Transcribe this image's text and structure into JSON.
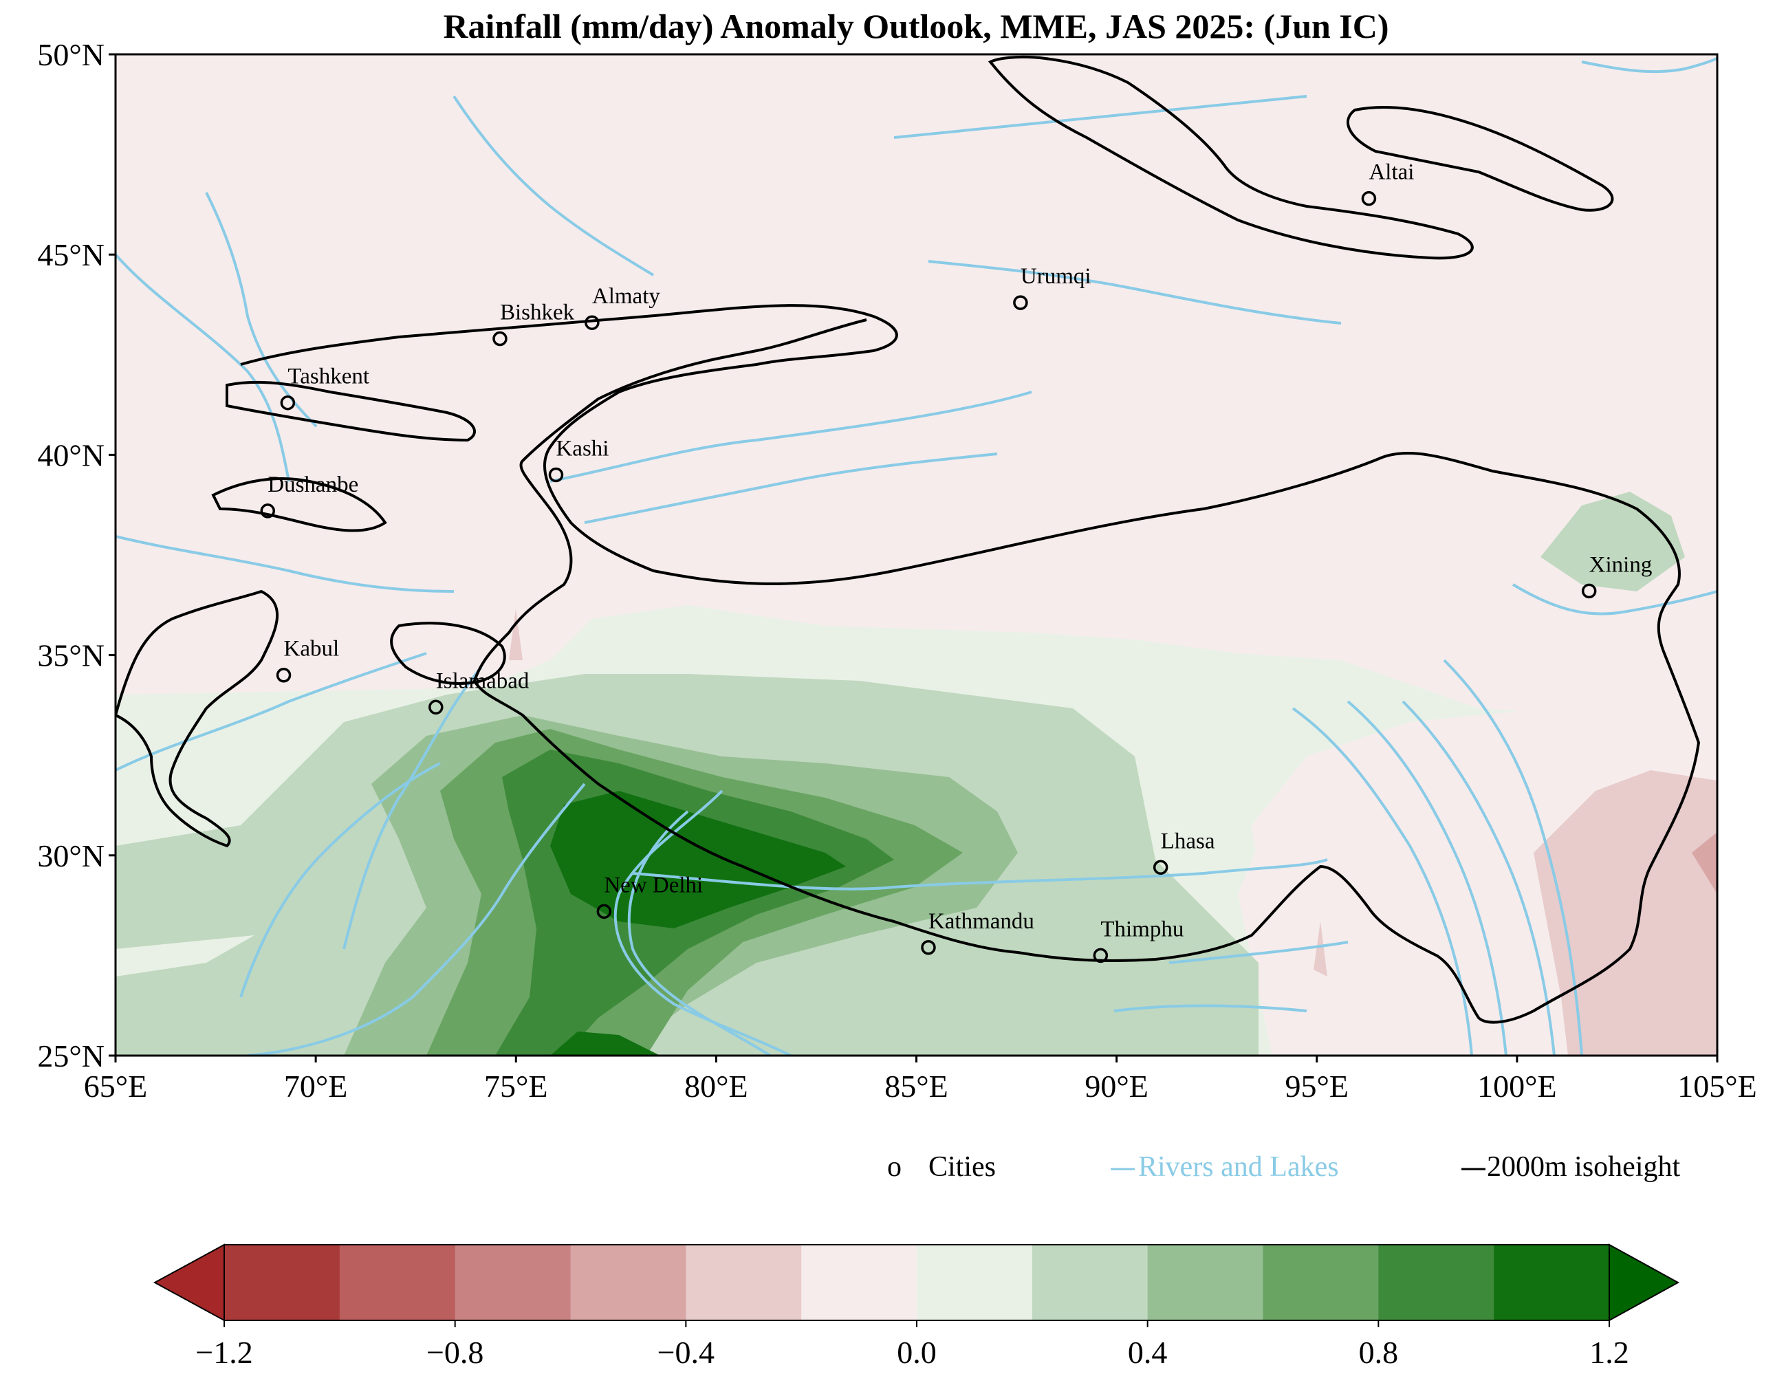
{
  "title": "Rainfall (mm/day) Anomaly Outlook, MME, JAS  2025:  (Jun IC)",
  "map": {
    "lon_range": [
      65,
      105
    ],
    "lat_range": [
      25,
      50
    ],
    "x_ticks": [
      "65°E",
      "70°E",
      "75°E",
      "80°E",
      "85°E",
      "90°E",
      "95°E",
      "100°E",
      "105°E"
    ],
    "y_ticks": [
      "50°N",
      "45°N",
      "40°N",
      "35°N",
      "30°N",
      "25°N"
    ],
    "cities": [
      {
        "name": "Tashkent",
        "lon": 69.3,
        "lat": 41.3
      },
      {
        "name": "Bishkek",
        "lon": 74.6,
        "lat": 42.9
      },
      {
        "name": "Almaty",
        "lon": 76.9,
        "lat": 43.3
      },
      {
        "name": "Urumqi",
        "lon": 87.6,
        "lat": 43.8
      },
      {
        "name": "Altai",
        "lon": 96.3,
        "lat": 46.4
      },
      {
        "name": "Kashi",
        "lon": 76.0,
        "lat": 39.5
      },
      {
        "name": "Dushanbe",
        "lon": 68.8,
        "lat": 38.6
      },
      {
        "name": "Xining",
        "lon": 101.8,
        "lat": 36.6
      },
      {
        "name": "Kabul",
        "lon": 69.2,
        "lat": 34.5
      },
      {
        "name": "Islamabad",
        "lon": 73.0,
        "lat": 33.7
      },
      {
        "name": "Lhasa",
        "lon": 91.1,
        "lat": 29.7
      },
      {
        "name": "New Delhi",
        "lon": 77.2,
        "lat": 28.6
      },
      {
        "name": "Kathmandu",
        "lon": 85.3,
        "lat": 27.7
      },
      {
        "name": "Thimphu",
        "lon": 89.6,
        "lat": 27.5
      }
    ]
  },
  "legend": {
    "cities_marker": "o",
    "cities_label": "Cities",
    "rivers_label": "Rivers and Lakes",
    "isoheight_label": "2000m isoheight"
  },
  "colorbar": {
    "min": -1.2,
    "max": 1.2,
    "ticks": [
      "−1.2",
      "−0.8",
      "−0.4",
      "0.0",
      "0.4",
      "0.8",
      "1.2"
    ],
    "colors": [
      "#a93a3a",
      "#ba5e5e",
      "#c98282",
      "#d9a6a6",
      "#e8cbcb",
      "#f6ecec",
      "#e9f1e7",
      "#c0d8bf",
      "#96bf93",
      "#69a462",
      "#3e8a3b",
      "#117111"
    ],
    "under_color": "#a62727",
    "over_color": "#006400"
  },
  "colors": {
    "river": "#89cbe6",
    "isoheight": "#000000"
  }
}
